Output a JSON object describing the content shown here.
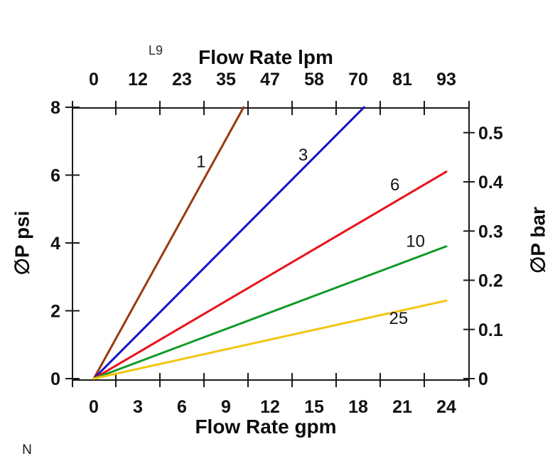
{
  "labels": {
    "device_code": "L9",
    "footnote": "N"
  },
  "chart_data": {
    "type": "line",
    "grid": false,
    "legend": "inline-labels-on-lines",
    "background": "#ffffff",
    "axis_color": "#1a1a1a",
    "text_color": "#111111",
    "x_top": {
      "label": "Flow Rate lpm",
      "tick_labels": [
        "0",
        "12",
        "23",
        "35",
        "47",
        "58",
        "70",
        "81",
        "93"
      ]
    },
    "x_bottom": {
      "label": "Flow Rate gpm",
      "tick_labels": [
        "0",
        "3",
        "6",
        "9",
        "12",
        "15",
        "18",
        "21",
        "24"
      ],
      "tick_values": [
        0,
        3,
        6,
        9,
        12,
        15,
        18,
        21,
        24
      ],
      "range": [
        0,
        24
      ]
    },
    "y_left": {
      "label": "∅P psi",
      "tick_labels": [
        "0",
        "2",
        "4",
        "6",
        "8"
      ],
      "tick_values": [
        0,
        2,
        4,
        6,
        8
      ],
      "range": [
        0,
        8
      ]
    },
    "y_right": {
      "label": "∅P bar",
      "tick_labels": [
        "0",
        "0.1",
        "0.2",
        "0.3",
        "0.4",
        "0.5"
      ],
      "tick_values": [
        0,
        0.1,
        0.2,
        0.3,
        0.4,
        0.5
      ],
      "range": [
        0,
        0.55
      ]
    },
    "series": [
      {
        "name": "1",
        "color": "#993a0e",
        "points": [
          [
            0,
            0
          ],
          [
            10.2,
            8.0
          ]
        ],
        "label_pos": [
          7.3,
          6.4
        ]
      },
      {
        "name": "3",
        "color": "#1511c7",
        "points": [
          [
            0,
            0
          ],
          [
            18.4,
            8.0
          ]
        ],
        "label_pos": [
          14.25,
          6.6
        ]
      },
      {
        "name": "6",
        "color": "#e8111a",
        "points": [
          [
            0,
            0
          ],
          [
            24.0,
            6.1
          ]
        ],
        "label_pos": [
          20.5,
          5.72
        ]
      },
      {
        "name": "10",
        "color": "#119929",
        "points": [
          [
            0,
            0
          ],
          [
            24.0,
            3.9
          ]
        ],
        "label_pos": [
          21.9,
          4.05
        ]
      },
      {
        "name": "25",
        "color": "#f3c50e",
        "points": [
          [
            0,
            0
          ],
          [
            24.0,
            2.3
          ]
        ],
        "label_pos": [
          20.75,
          1.78
        ]
      }
    ]
  }
}
